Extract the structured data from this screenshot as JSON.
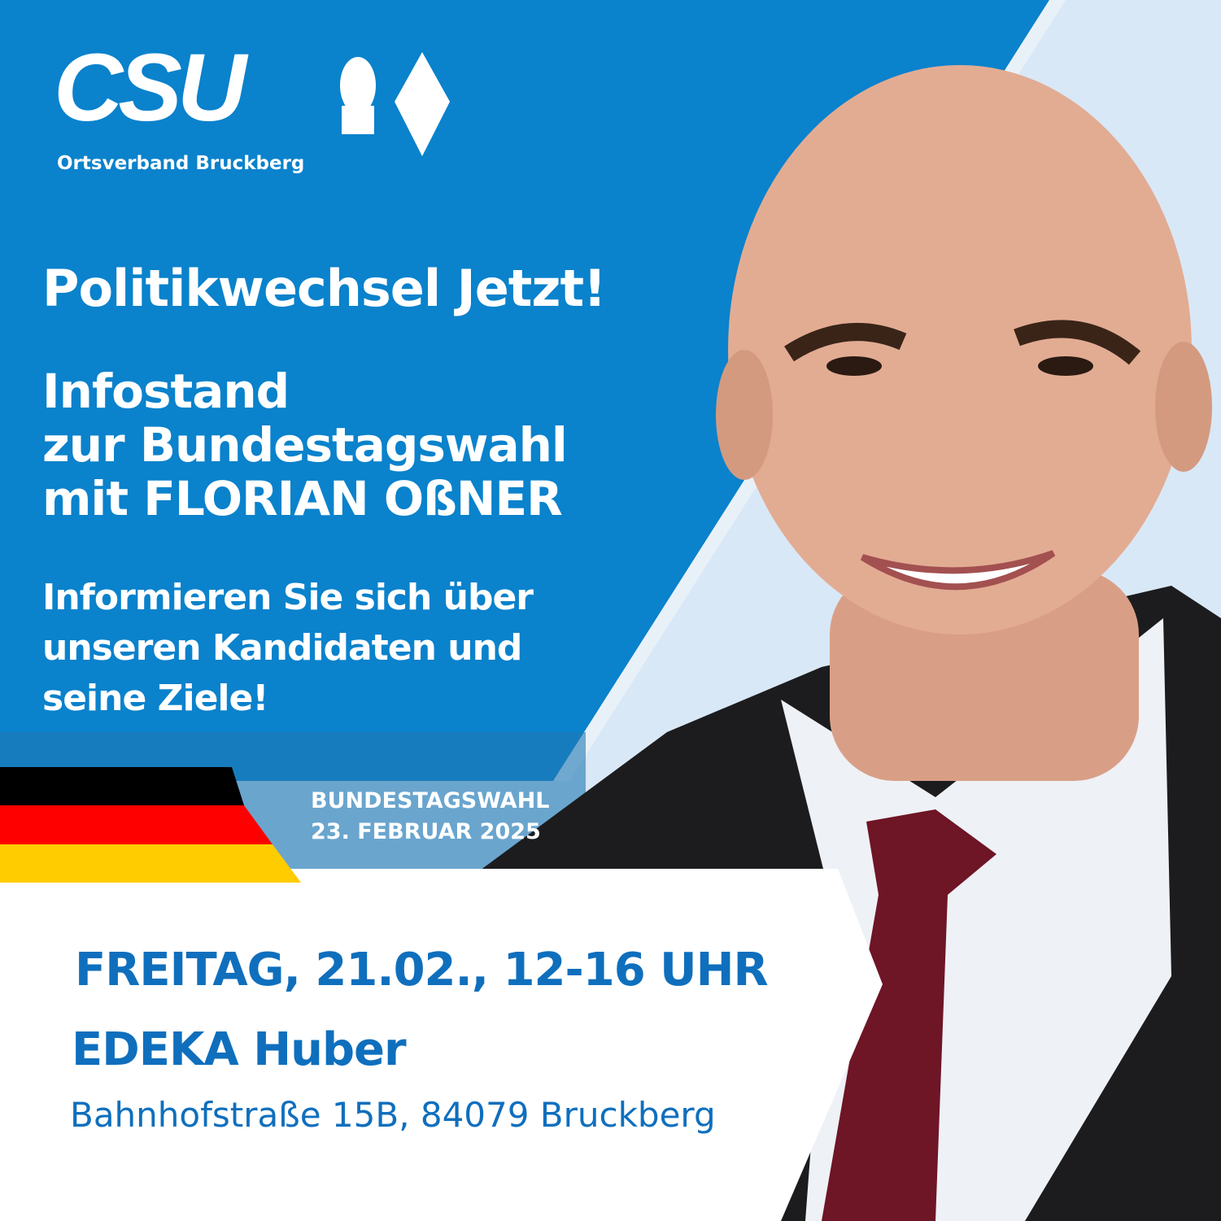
{
  "colors": {
    "brand_blue": "#0a82cc",
    "light_blue": "#d9e8f6",
    "text_blue": "#0f6fbd",
    "flag": [
      "#000000",
      "#ff0000",
      "#ffcc00"
    ]
  },
  "logo": {
    "wordmark": "CSU",
    "icons": [
      "lion-icon",
      "diamond-icon"
    ]
  },
  "org": "Ortsverband Bruckberg",
  "headline": "Politikwechsel Jetzt!",
  "info_lines": [
    "Infostand",
    "zur Bundestagswahl",
    "mit FLORIAN OßNER"
  ],
  "sub_lines": [
    "Informieren Sie sich über",
    "unseren Kandidaten und",
    "seine Ziele!"
  ],
  "election": {
    "label": "BUNDESTAGSWAHL",
    "date": "23. FEBRUAR 2025"
  },
  "event": {
    "when": "FREITAG, 21.02., 12-16 UHR",
    "where": "EDEKA Huber",
    "address": "Bahnhofstraße 15B, 84079 Bruckberg"
  }
}
